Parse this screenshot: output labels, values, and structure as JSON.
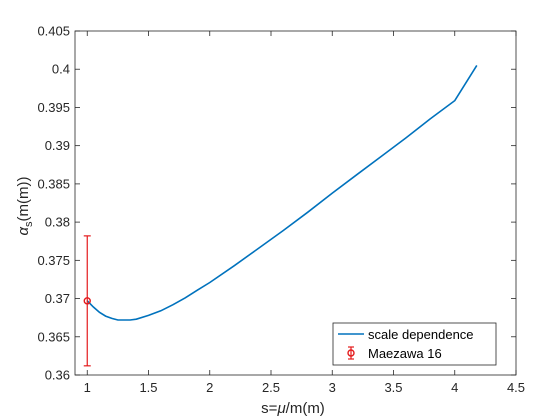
{
  "chart_data": {
    "type": "line",
    "xlabel": "s=μ/m(m)",
    "ylabel": "αs(m(m))",
    "ylabel_main": "α",
    "ylabel_sub": "s",
    "ylabel_rest": "(m(m))",
    "xlabel_pre": "s=",
    "xlabel_mu": "μ",
    "xlabel_post": "/m(m)",
    "xlim": [
      0.9,
      4.5
    ],
    "ylim": [
      0.36,
      0.405
    ],
    "xticks": [
      1,
      1.5,
      2,
      2.5,
      3,
      3.5,
      4,
      4.5
    ],
    "xtick_labels": [
      "1",
      "1.5",
      "2",
      "2.5",
      "3",
      "3.5",
      "4",
      "4.5"
    ],
    "yticks": [
      0.36,
      0.365,
      0.37,
      0.375,
      0.38,
      0.385,
      0.39,
      0.395,
      0.4,
      0.405
    ],
    "ytick_labels": [
      "0.36",
      "0.365",
      "0.37",
      "0.375",
      "0.38",
      "0.385",
      "0.39",
      "0.395",
      "0.4",
      "0.405"
    ],
    "grid": false,
    "box": true,
    "legend_position": "bottom-right",
    "series": [
      {
        "name": "scale dependence",
        "style": "line",
        "color": "#0072BD",
        "x": [
          1.0,
          1.05,
          1.1,
          1.15,
          1.2,
          1.25,
          1.3,
          1.35,
          1.4,
          1.5,
          1.6,
          1.7,
          1.8,
          1.9,
          2.0,
          2.2,
          2.4,
          2.6,
          2.8,
          3.0,
          3.2,
          3.4,
          3.6,
          3.8,
          4.0,
          4.18
        ],
        "y": [
          0.3697,
          0.3689,
          0.3682,
          0.3677,
          0.3674,
          0.3672,
          0.3672,
          0.3672,
          0.3673,
          0.3678,
          0.3684,
          0.3692,
          0.3701,
          0.3711,
          0.3721,
          0.3743,
          0.3766,
          0.3789,
          0.3813,
          0.3838,
          0.3862,
          0.3886,
          0.391,
          0.3935,
          0.3959,
          0.4005
        ]
      },
      {
        "name": "Maezawa 16",
        "style": "errorbar",
        "color": "#E41A1C",
        "x": [
          1.0
        ],
        "y": [
          0.3697
        ],
        "yerr_low": [
          0.3612
        ],
        "yerr_high": [
          0.3782
        ]
      }
    ]
  }
}
